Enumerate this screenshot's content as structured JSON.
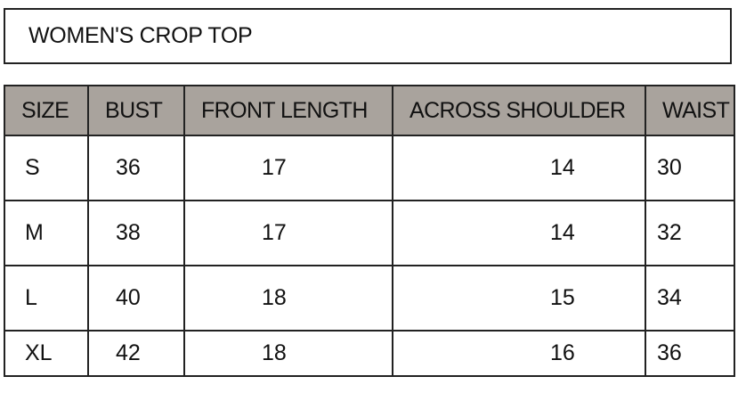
{
  "title": "WOMEN'S CROP TOP",
  "headers": {
    "size": "SIZE",
    "bust": "BUST",
    "front_length": "FRONT LENGTH",
    "across_shoulder": "ACROSS SHOULDER",
    "waist": "WAIST"
  },
  "rows": [
    {
      "size": "S",
      "bust": "36",
      "front_length": "17",
      "across_shoulder": "14",
      "waist": "30"
    },
    {
      "size": "M",
      "bust": "38",
      "front_length": "17",
      "across_shoulder": "14",
      "waist": "32"
    },
    {
      "size": "L",
      "bust": "40",
      "front_length": "18",
      "across_shoulder": "15",
      "waist": "34"
    },
    {
      "size": "XL",
      "bust": "42",
      "front_length": "18",
      "across_shoulder": "16",
      "waist": "36"
    }
  ],
  "colors": {
    "header_background": "#a9a39d",
    "border": "#222222",
    "text": "#111111"
  }
}
